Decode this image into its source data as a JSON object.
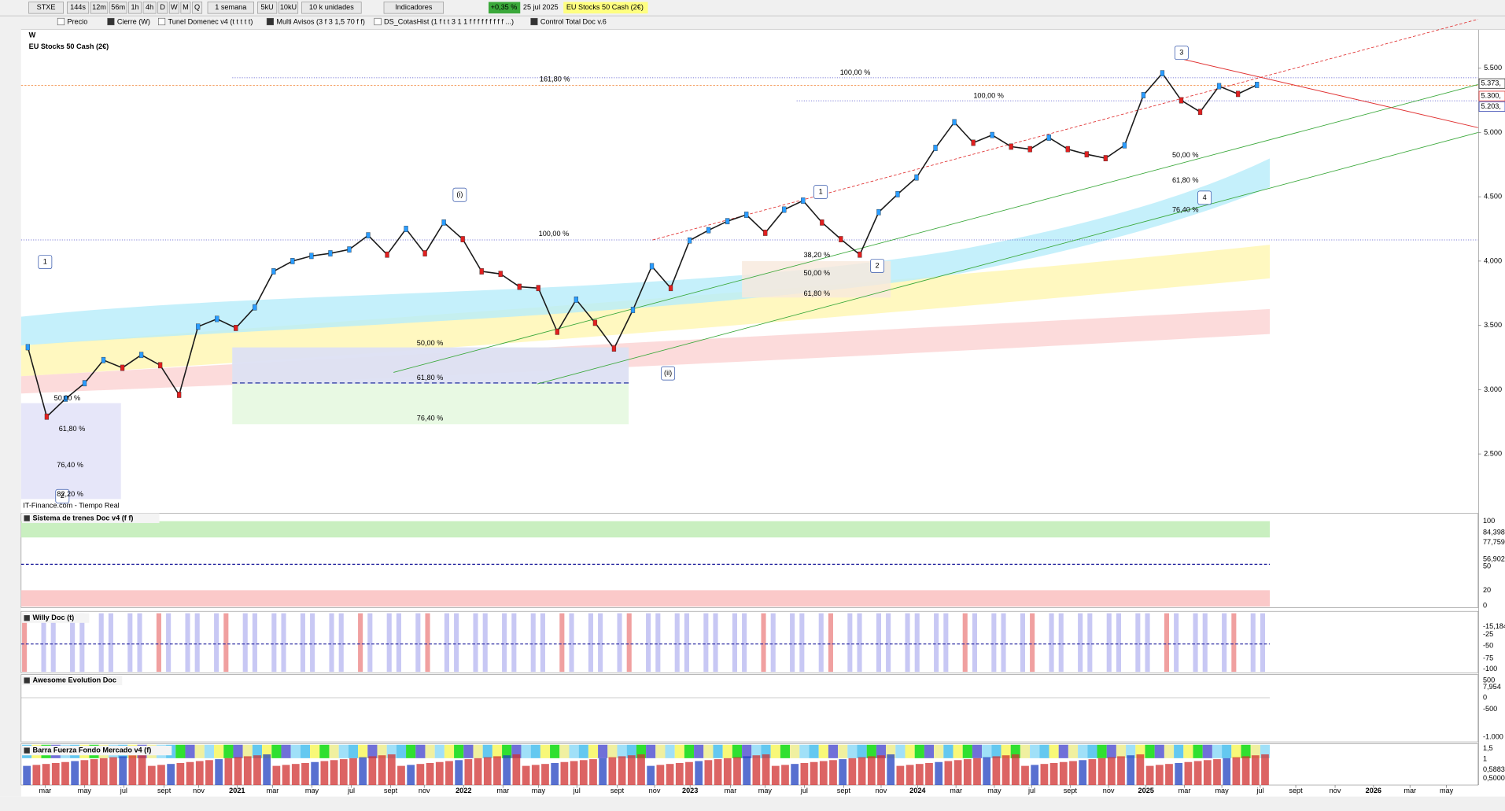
{
  "toolbar": {
    "symbol": "STXE",
    "timeframes": [
      "144s",
      "12m",
      "56m",
      "1h",
      "4h",
      "D",
      "W",
      "M",
      "Q"
    ],
    "period": "1 semana",
    "units_buttons": [
      "5kU",
      "10kU"
    ],
    "units": "10 k unidades",
    "indicators": "Indicadores",
    "change": "+0,35 %",
    "date": "25 jul 2025",
    "instrument": "EU Stocks 50 Cash (2€)"
  },
  "legend_bar": [
    "Precio",
    "Cierre (W)",
    "Tunel Domenec v4 (t t t t t)",
    "Multi Avisos (3 f 3 1,5 70 f f)",
    "DS_CotasHist (1 f t t 3 1 1 f f f f f f f f f ...)",
    "Control Total Doc v.6"
  ],
  "chart": {
    "timeframe": "W",
    "title": "EU Stocks 50 Cash (2€)",
    "source": "IT-Finance.com - Tiempo Real",
    "wave_labels": [
      "1",
      "(i)",
      "1",
      "2",
      "(ii)",
      "3",
      "4",
      "2"
    ],
    "fib_labels": [
      "161,80 %",
      "100,00 %",
      "100,00 %",
      "100,00 %",
      "38,20 %",
      "50,00 %",
      "61,80 %",
      "50,00 %",
      "61,80 %",
      "76,40 %",
      "50,00 %",
      "61,80 %",
      "76,40 %",
      "50,00 %",
      "61,80 %",
      "76,40 %",
      "82,20 %"
    ],
    "price_tags": [
      "5.373,",
      "5.300,",
      "5.203,"
    ],
    "yticks": [
      {
        "value": 5500,
        "label": "5.500"
      },
      {
        "value": 5000,
        "label": "5.000"
      },
      {
        "value": 4500,
        "label": "4.500"
      },
      {
        "value": 4000,
        "label": "4.000"
      },
      {
        "value": 3500,
        "label": "3.500"
      },
      {
        "value": 3000,
        "label": "3.000"
      },
      {
        "value": 2500,
        "label": "2.500"
      }
    ],
    "closes": [
      3330,
      2790,
      2930,
      3050,
      3230,
      3170,
      3270,
      3190,
      2960,
      3490,
      3550,
      3480,
      3640,
      3920,
      4000,
      4040,
      4060,
      4090,
      4200,
      4050,
      4250,
      4060,
      4300,
      4170,
      3920,
      3900,
      3800,
      3790,
      3450,
      3700,
      3520,
      3320,
      3620,
      3960,
      3790,
      4160,
      4240,
      4310,
      4360,
      4220,
      4400,
      4470,
      4300,
      4170,
      4050,
      4380,
      4520,
      4650,
      4880,
      5080,
      4920,
      4980,
      4890,
      4870,
      4960,
      4870,
      4830,
      4800,
      4900,
      5290,
      5460,
      5250,
      5160,
      5360,
      5300,
      5370
    ]
  },
  "panels": [
    {
      "title": "Sistema de trenes Doc v4 (f f)",
      "axis_labels": [
        "100",
        "84,398",
        "77,759",
        "56,902",
        "50",
        "20",
        "0"
      ]
    },
    {
      "title": "Willy Doc (t)",
      "axis_labels": [
        "-15,184",
        "-25",
        "-50",
        "-75",
        "-100"
      ]
    },
    {
      "title": "Awesome Evolution Doc",
      "axis_labels": [
        "500",
        "7,954",
        "0",
        "-500",
        "-1.000"
      ]
    },
    {
      "title": "Barra Fuerza Fondo Mercado v4 (f)",
      "axis_labels": [
        "1,5",
        "1",
        "0,5883",
        "0,5000"
      ]
    }
  ],
  "x_axis": {
    "labels": [
      "mar",
      "may",
      "jul",
      "sept",
      "nov",
      "2021",
      "mar",
      "may",
      "jul",
      "sept",
      "nov",
      "2022",
      "mar",
      "may",
      "jul",
      "sept",
      "nov",
      "2023",
      "mar",
      "may",
      "jul",
      "sept",
      "nov",
      "2024",
      "mar",
      "may",
      "jul",
      "sept",
      "nov",
      "2025",
      "mar",
      "may",
      "jul",
      "sept",
      "nov",
      "2026",
      "mar",
      "may"
    ]
  }
}
